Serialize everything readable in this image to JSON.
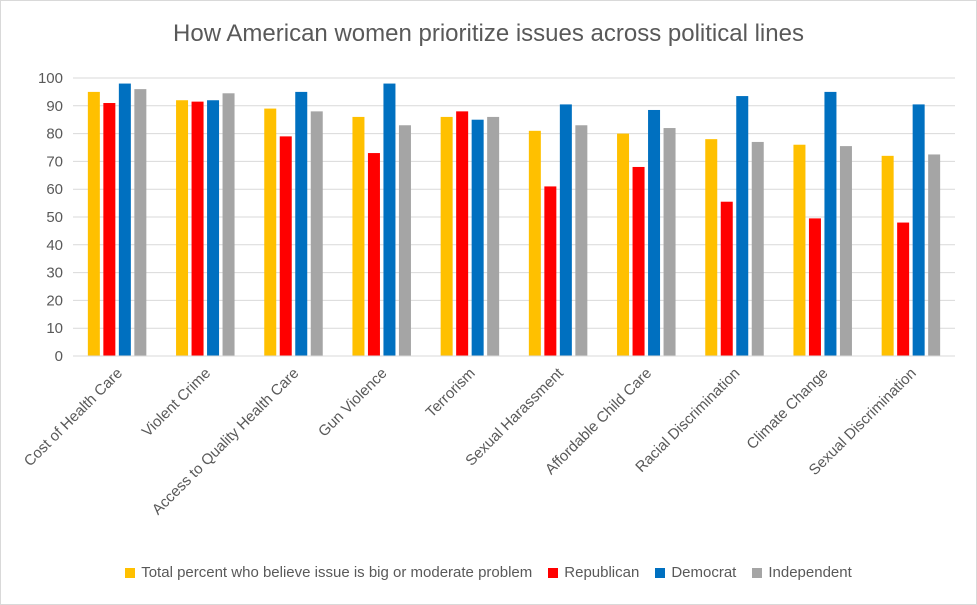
{
  "chart_data": {
    "type": "bar",
    "title": "How American women prioritize issues across political lines",
    "xlabel": "",
    "ylabel": "",
    "ylim": [
      0,
      100
    ],
    "yticks": [
      0,
      10,
      20,
      30,
      40,
      50,
      60,
      70,
      80,
      90,
      100
    ],
    "grid": true,
    "legend_position": "bottom",
    "categories": [
      "Cost of Health Care",
      "Violent Crime",
      "Access to Quality Health Care",
      "Gun Violence",
      "Terrorism",
      "Sexual Harassment",
      "Affordable Child Care",
      "Racial Discrimination",
      "Climate Change",
      "Sexual Discrimination"
    ],
    "series": [
      {
        "name": "Total percent who believe issue is big or moderate problem",
        "color": "#FFC000",
        "values": [
          95,
          92,
          89,
          86,
          86,
          81,
          80,
          78,
          76,
          72
        ]
      },
      {
        "name": "Republican",
        "color": "#FF0000",
        "values": [
          91,
          91.5,
          79,
          73,
          88,
          61,
          68,
          55.5,
          49.5,
          48
        ]
      },
      {
        "name": "Democrat",
        "color": "#0070C0",
        "values": [
          98,
          92,
          95,
          98,
          85,
          90.5,
          88.5,
          93.5,
          95,
          90.5
        ]
      },
      {
        "name": "Independent",
        "color": "#A5A5A5",
        "values": [
          96,
          94.5,
          88,
          83,
          86,
          83,
          82,
          77,
          75.5,
          72.5
        ]
      }
    ]
  }
}
